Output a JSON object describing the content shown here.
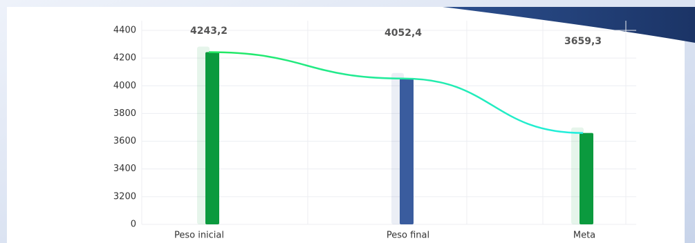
{
  "chart_data": {
    "type": "bar",
    "categories": [
      "Peso inicial",
      "Peso final",
      "Meta"
    ],
    "values": [
      4243.2,
      4052.4,
      3659.3
    ],
    "value_labels": [
      "4243,2",
      "4052,4",
      "3659,3"
    ],
    "colors": [
      "#0b9a3e",
      "#3a5c9e",
      "#0b9a3e"
    ],
    "ylim": [
      3000,
      4400
    ],
    "yticks": [
      {
        "value": 3000,
        "label": "0"
      },
      3200,
      3400,
      3600,
      3800,
      4000,
      4200,
      4400
    ],
    "grid": true
  }
}
